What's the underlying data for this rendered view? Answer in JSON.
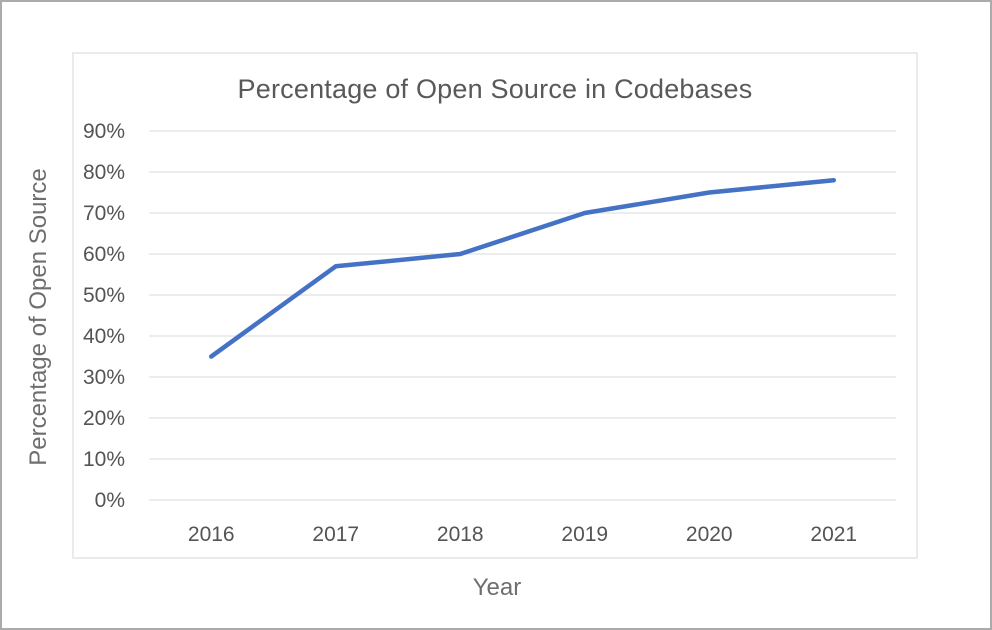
{
  "chart_data": {
    "type": "line",
    "title": "Percentage of Open Source in Codebases",
    "xlabel": "Year",
    "ylabel": "Percentage of Open Source",
    "categories": [
      "2016",
      "2017",
      "2018",
      "2019",
      "2020",
      "2021"
    ],
    "series": [
      {
        "name": "Percentage of Open Source",
        "values": [
          35,
          57,
          60,
          70,
          75,
          78
        ]
      }
    ],
    "ylim": [
      0,
      90
    ],
    "ytick_step": 10,
    "ytick_suffix": "%",
    "grid": true,
    "legend_position": "none",
    "line_color": "#4472c4",
    "gridline_color": "#e7e7e7",
    "title_color": "#58595b",
    "tick_label_color": "#545454",
    "axis_title_color": "#6e6e6e",
    "card_border_color": "#ebebeb",
    "frame_border_color": "#ababab",
    "background_color": "#ffffff"
  }
}
